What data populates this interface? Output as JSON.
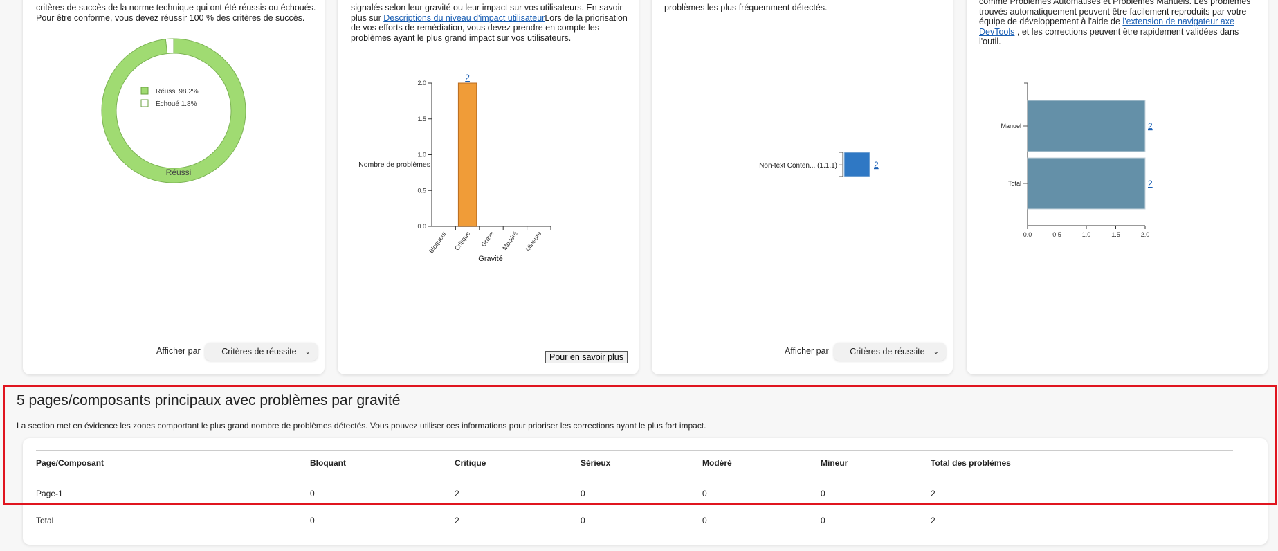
{
  "cards": [
    {
      "lines": [
        "critères de succès de la norme technique qui ont été réussis ou échoués.",
        "Pour être conforme, vous devez réussir 100 % des critères de succès."
      ],
      "show_by_label": "Afficher par",
      "show_by_value": "Critères de réussite"
    },
    {
      "lines_pre": "signalés selon leur gravité ou leur impact sur vos utilisateurs. En savoir",
      "line2_pre": "plus sur ",
      "link": "Descriptions du niveau d'impact utilisateur",
      "line2_post": "Lors de la priorisation",
      "line3": "de vos efforts de remédiation, vous devez prendre en compte les",
      "line4": "problèmes ayant le plus grand impact sur vos utilisateurs.",
      "button": "Pour en savoir plus"
    },
    {
      "lines": [
        "problèmes les plus fréquemment détectés."
      ],
      "show_by_label": "Afficher par",
      "show_by_value": "Critères de réussite"
    },
    {
      "line1": "comme Problèmes Automatisés et Problèmes Manuels. Les problèmes",
      "line2": "trouvés automatiquement peuvent être facilement reproduits par votre",
      "line3_pre": "équipe de développement à l'aide de ",
      "link_a": "l'extension de navigateur axe",
      "link_b": "DevTools",
      "line4_post": " , et les corrections peuvent être rapidement validées dans",
      "line5": "l'outil."
    }
  ],
  "chart_data": [
    {
      "type": "pie",
      "donut": true,
      "categories": [
        "Réussi",
        "Échoué"
      ],
      "values": [
        98.2,
        1.8
      ],
      "legend": [
        "Réussi 98.2%",
        "Échoué 1.8%"
      ],
      "slice_label": "Réussi",
      "colors": [
        "#a0db72",
        "#ffffff"
      ]
    },
    {
      "type": "bar",
      "categories": [
        "Bloqueur",
        "Critique",
        "Grave",
        "Modéré",
        "Mineure"
      ],
      "values": [
        0,
        2,
        0,
        0,
        0
      ],
      "data_labels": [
        "",
        "2",
        "",
        "",
        ""
      ],
      "ylabel": "Nombre de problèmes",
      "xlabel": "Gravité",
      "ylim": [
        0,
        2
      ],
      "yticks": [
        "0.0",
        "0.5",
        "1.0",
        "1.5",
        "2.0"
      ],
      "color": "#f09c38"
    },
    {
      "type": "bar",
      "orientation": "horizontal",
      "categories": [
        "Non-text Conten... (1.1.1)"
      ],
      "values": [
        2
      ],
      "data_labels": [
        "2"
      ],
      "color": "#2f78c4"
    },
    {
      "type": "bar",
      "orientation": "horizontal",
      "categories": [
        "Manuel",
        "Total"
      ],
      "values": [
        2,
        2
      ],
      "data_labels": [
        "2",
        "2"
      ],
      "xlim": [
        0,
        2
      ],
      "xticks": [
        "0.0",
        "0.5",
        "1.0",
        "1.5",
        "2.0"
      ],
      "color": "#6490a8"
    }
  ],
  "section": {
    "title": "5 pages/composants principaux avec problèmes par gravité",
    "description": "La section met en évidence les zones comportant le plus grand nombre de problèmes détectés. Vous pouvez utiliser ces informations pour prioriser les corrections ayant le plus fort impact.",
    "columns": [
      "Page/Composant",
      "Bloquant",
      "Critique",
      "Sérieux",
      "Modéré",
      "Mineur",
      "Total des problèmes"
    ],
    "rows": [
      [
        "Page-1",
        "0",
        "2",
        "0",
        "0",
        "0",
        "2"
      ],
      [
        "Total",
        "0",
        "2",
        "0",
        "0",
        "0",
        "2"
      ]
    ]
  }
}
